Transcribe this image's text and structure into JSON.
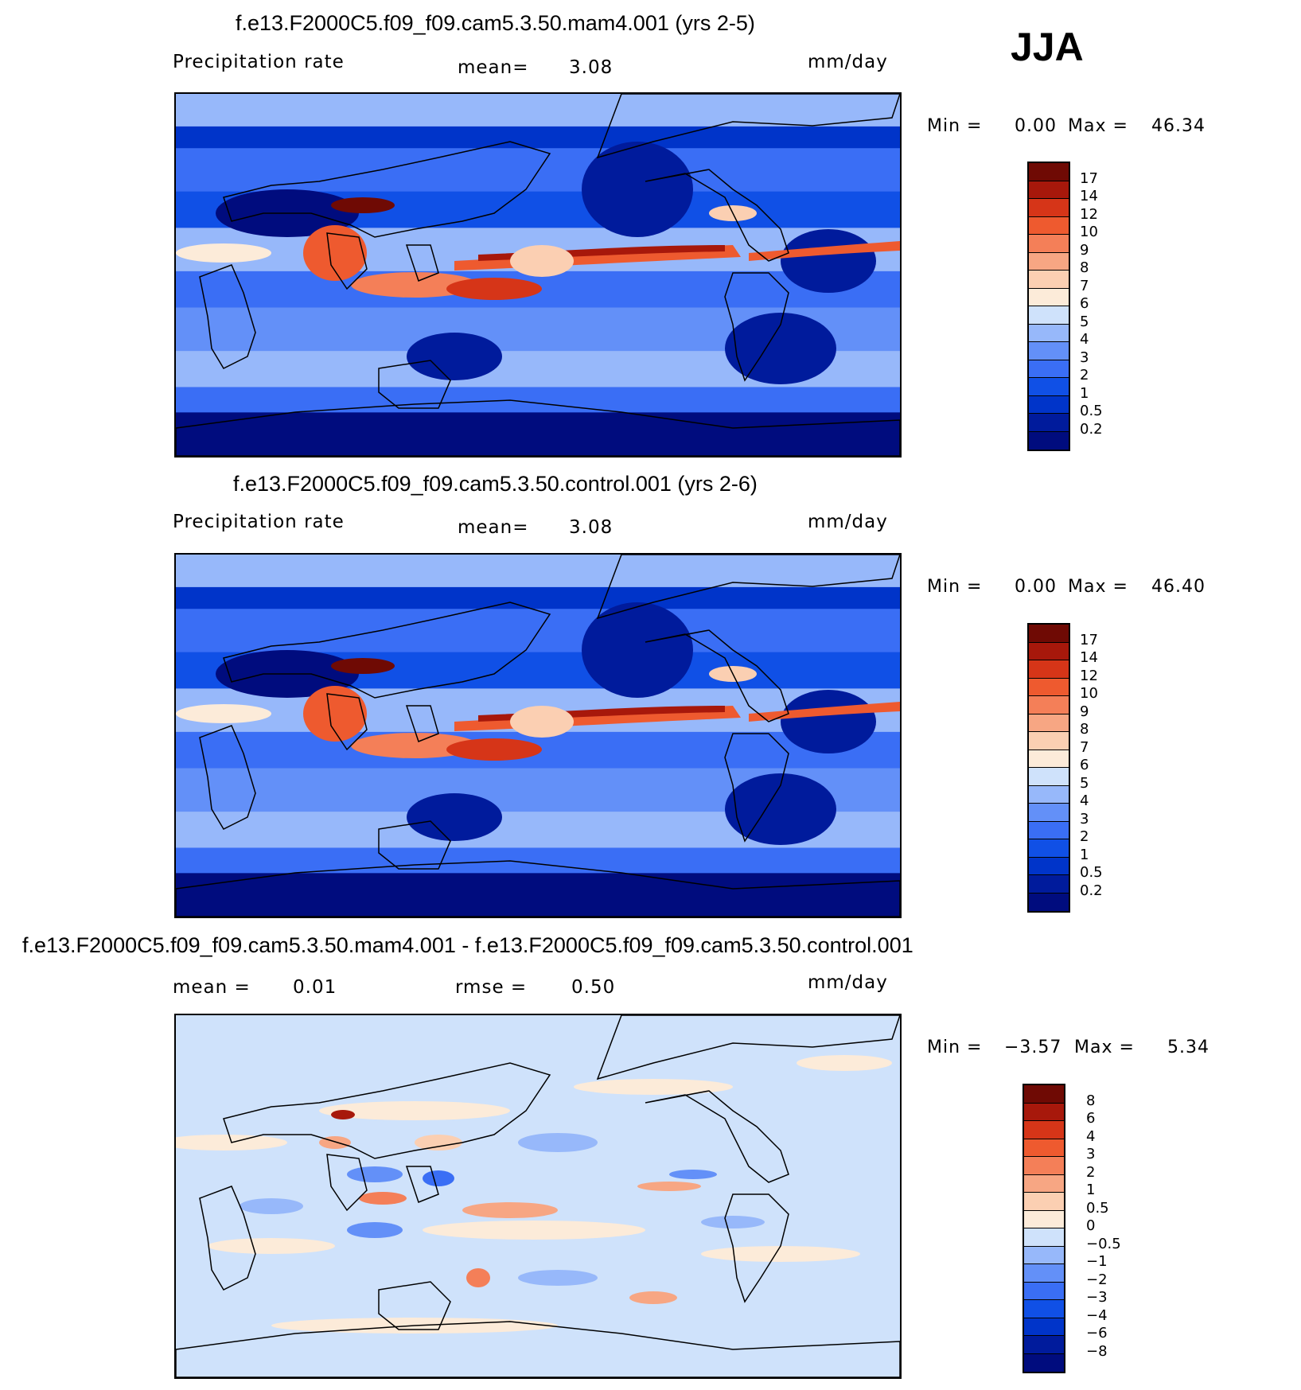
{
  "season": "JJA",
  "panels": [
    {
      "title": "f.e13.F2000C5.f09_f09.cam5.3.50.mam4.001 (yrs 2-5)",
      "variable": "Precipitation  rate",
      "stat_label": "mean=",
      "stat_value": "3.08",
      "unit": "mm/day",
      "min_label": "Min  =",
      "min_value": "0.00",
      "max_label": "Max  =",
      "max_value": "46.34",
      "colorbar": [
        "17",
        "14",
        "12",
        "10",
        "9",
        "8",
        "7",
        "6",
        "5",
        "4",
        "3",
        "2",
        "1",
        "0.5",
        "0.2"
      ]
    },
    {
      "title": "f.e13.F2000C5.f09_f09.cam5.3.50.control.001 (yrs 2-6)",
      "variable": "Precipitation  rate",
      "stat_label": "mean=",
      "stat_value": "3.08",
      "unit": "mm/day",
      "min_label": "Min  =",
      "min_value": "0.00",
      "max_label": "Max  =",
      "max_value": "46.40",
      "colorbar": [
        "17",
        "14",
        "12",
        "10",
        "9",
        "8",
        "7",
        "6",
        "5",
        "4",
        "3",
        "2",
        "1",
        "0.5",
        "0.2"
      ]
    },
    {
      "title": "f.e13.F2000C5.f09_f09.cam5.3.50.mam4.001 - f.e13.F2000C5.f09_f09.cam5.3.50.control.001",
      "mean_label": "mean  =",
      "mean_value": "0.01",
      "rmse_label": "rmse  =",
      "rmse_value": "0.50",
      "unit": "mm/day",
      "min_label": "Min  =",
      "min_value": "−3.57",
      "max_label": "Max  =",
      "max_value": "5.34",
      "colorbar": [
        "8",
        "6",
        "4",
        "3",
        "2",
        "1",
        "0.5",
        "0",
        "−0.5",
        "−1",
        "−2",
        "−3",
        "−4",
        "−6",
        "−8"
      ]
    }
  ],
  "chart_data": [
    {
      "type": "heatmap",
      "title": "f.e13.F2000C5.f09_f09.cam5.3.50.mam4.001 (yrs 2-5)",
      "variable": "Precipitation  rate",
      "units": "mm/day",
      "mean": 3.08,
      "min": 0.0,
      "max": 46.34,
      "levels": [
        0.2,
        0.5,
        1,
        2,
        3,
        4,
        5,
        6,
        7,
        8,
        9,
        10,
        12,
        14,
        17
      ],
      "colors": [
        "#000c7e",
        "#001b9c",
        "#0034c9",
        "#1050e6",
        "#3a6ef5",
        "#6390f8",
        "#97b8fa",
        "#cfe2fb",
        "#fcebd9",
        "#fbcfb2",
        "#f7a683",
        "#f47f58",
        "#ee5a2f",
        "#d63518",
        "#a7180b",
        "#6f0a04"
      ]
    },
    {
      "type": "heatmap",
      "title": "f.e13.F2000C5.f09_f09.cam5.3.50.control.001 (yrs 2-6)",
      "variable": "Precipitation  rate",
      "units": "mm/day",
      "mean": 3.08,
      "min": 0.0,
      "max": 46.4,
      "levels": [
        0.2,
        0.5,
        1,
        2,
        3,
        4,
        5,
        6,
        7,
        8,
        9,
        10,
        12,
        14,
        17
      ],
      "colors": [
        "#000c7e",
        "#001b9c",
        "#0034c9",
        "#1050e6",
        "#3a6ef5",
        "#6390f8",
        "#97b8fa",
        "#cfe2fb",
        "#fcebd9",
        "#fbcfb2",
        "#f7a683",
        "#f47f58",
        "#ee5a2f",
        "#d63518",
        "#a7180b",
        "#6f0a04"
      ]
    },
    {
      "type": "heatmap",
      "title": "f.e13.F2000C5.f09_f09.cam5.3.50.mam4.001 - f.e13.F2000C5.f09_f09.cam5.3.50.control.001",
      "units": "mm/day",
      "mean": 0.01,
      "rmse": 0.5,
      "min": -3.57,
      "max": 5.34,
      "levels": [
        -8,
        -6,
        -4,
        -3,
        -2,
        -1,
        -0.5,
        0,
        0.5,
        1,
        2,
        3,
        4,
        6,
        8
      ],
      "colors": [
        "#000c7e",
        "#001b9c",
        "#0034c9",
        "#1050e6",
        "#3a6ef5",
        "#6390f8",
        "#97b8fa",
        "#cfe2fb",
        "#fcebd9",
        "#fbcfb2",
        "#f7a683",
        "#f47f58",
        "#ee5a2f",
        "#d63518",
        "#a7180b",
        "#6f0a04"
      ]
    }
  ]
}
